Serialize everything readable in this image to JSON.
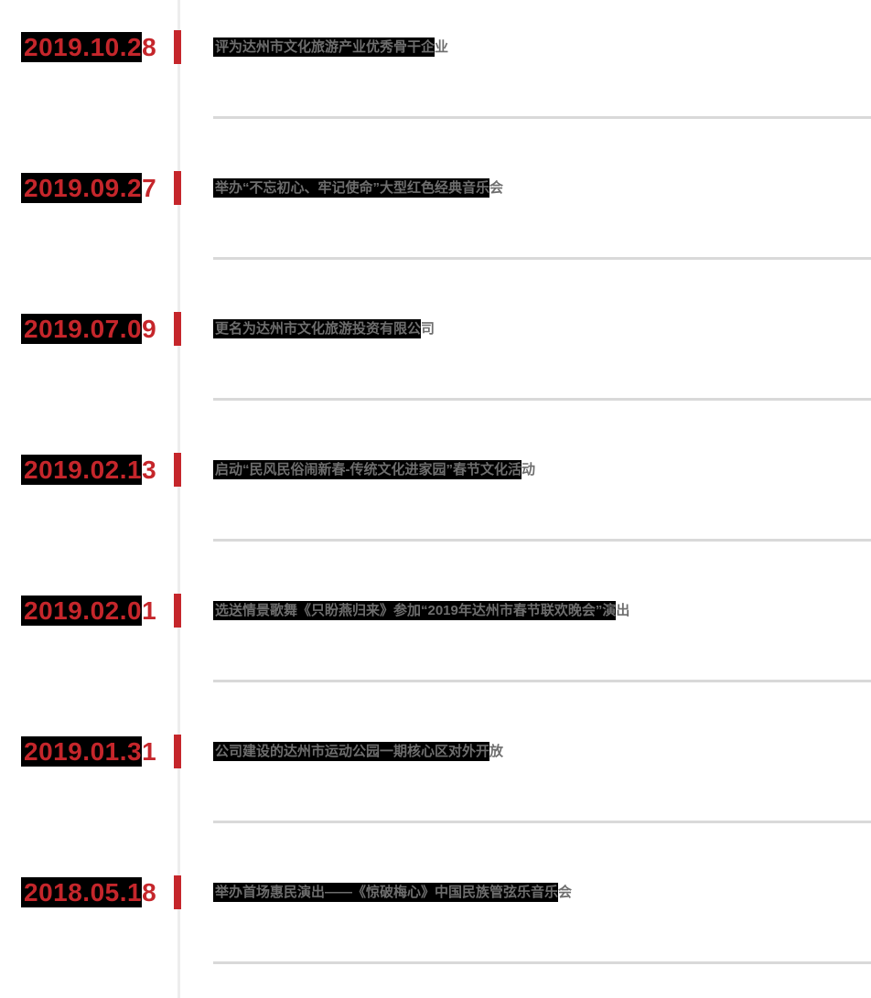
{
  "theme": {
    "background": "#ffffff",
    "accent_red": "#c5262b",
    "selection_black": "#000000",
    "text_gray": "#6e6e6e",
    "spine_gray": "#ededed",
    "divider_gray": "#d9d9d9"
  },
  "timeline": {
    "items": [
      {
        "date": "2019.10.28",
        "text": "评为达州市文化旅游产业优秀骨干企业"
      },
      {
        "date": "2019.09.27",
        "text": "举办“不忘初心、牢记使命”大型红色经典音乐会"
      },
      {
        "date": "2019.07.09",
        "text": "更名为达州市文化旅游投资有限公司"
      },
      {
        "date": "2019.02.13",
        "text": "启动“民风民俗闹新春-传统文化进家园”春节文化活动"
      },
      {
        "date": "2019.02.01",
        "text": "选送情景歌舞《只盼燕归来》参加“2019年达州市春节联欢晚会”演出"
      },
      {
        "date": "2019.01.31",
        "text": "公司建设的达州市运动公园一期核心区对外开放"
      },
      {
        "date": "2018.05.18",
        "text": "举办首场惠民演出——《惊破梅心》中国民族管弦乐音乐会"
      }
    ]
  }
}
